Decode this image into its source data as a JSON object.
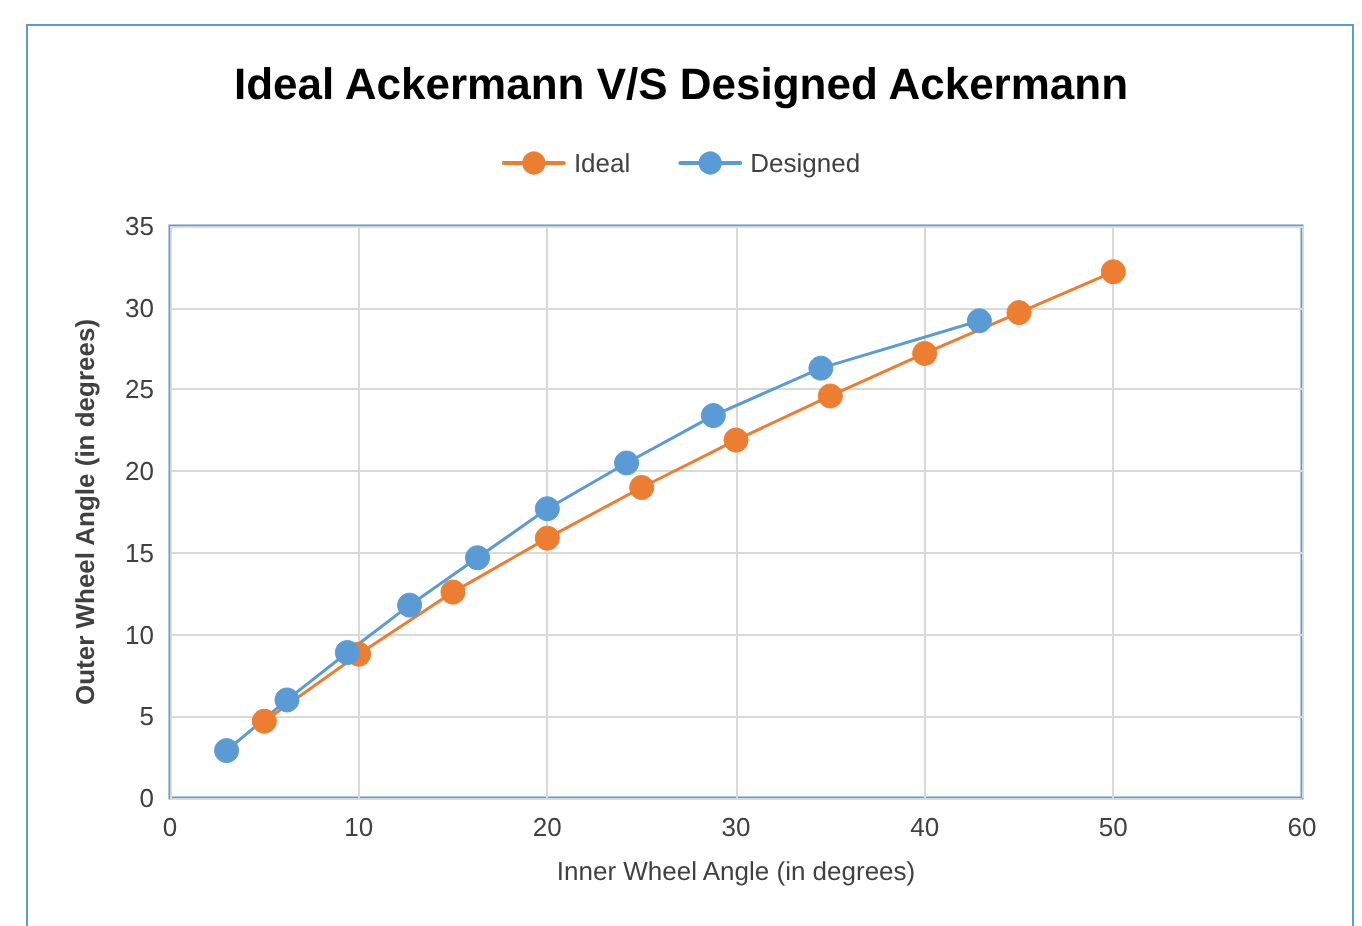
{
  "chart_data": {
    "type": "line",
    "title": "Ideal Ackermann V/S Designed Ackermann",
    "xlabel": "Inner Wheel Angle (in degrees)",
    "ylabel": "Outer Wheel Angle (in degrees)",
    "series": [
      {
        "name": "Ideal",
        "color": "#ed7d31",
        "x": [
          5,
          10,
          15,
          20,
          25,
          30,
          35,
          40,
          45,
          50
        ],
        "values": [
          4.7,
          8.8,
          12.6,
          15.9,
          19.0,
          21.9,
          24.6,
          27.2,
          29.7,
          32.2
        ]
      },
      {
        "name": "Designed",
        "color": "#5b9bd5",
        "x": [
          3,
          6.2,
          9.4,
          12.7,
          16.3,
          20,
          24.2,
          28.8,
          34.5,
          42.9
        ],
        "values": [
          2.9,
          6.0,
          8.9,
          11.8,
          14.7,
          17.7,
          20.5,
          23.4,
          26.3,
          29.2
        ]
      }
    ],
    "xlim": [
      0,
      60
    ],
    "xticks": [
      0,
      10,
      20,
      30,
      40,
      50,
      60
    ],
    "ylim": [
      0,
      35
    ],
    "yticks": [
      0,
      5,
      10,
      15,
      20,
      25,
      30,
      35
    ],
    "grid": true,
    "legend": "top",
    "marker": "circle",
    "line_style": "solid"
  }
}
